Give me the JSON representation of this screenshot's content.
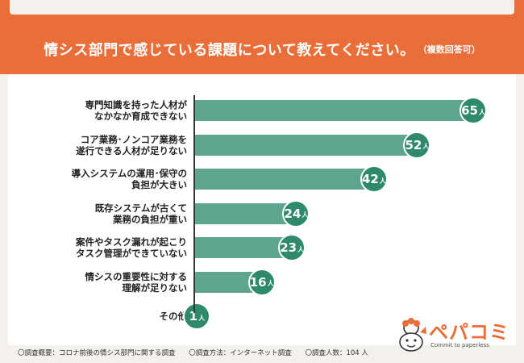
{
  "title": {
    "main": "情シス部門で感じている課題について教えてください。",
    "sub": "（複数回答可）"
  },
  "chart_data": {
    "type": "bar",
    "orientation": "horizontal",
    "unit": "人",
    "categories": [
      [
        "専門知識を持った人材が",
        "なかなか育成できない"
      ],
      [
        "コア業務･ノンコア業務を",
        "遂行できる人材が足りない"
      ],
      [
        "導入システムの運用･保守の",
        "負担が大きい"
      ],
      [
        "既存システムが古くて",
        "業務の負担が重い"
      ],
      [
        "案件やタスク漏れが起こり",
        "タスク管理ができていない"
      ],
      [
        "情シスの重要性に対する",
        "理解が足りない"
      ],
      [
        "その他"
      ]
    ],
    "values": [
      65,
      52,
      42,
      24,
      23,
      16,
      1
    ],
    "xlim": [
      0,
      70
    ]
  },
  "footer": {
    "overview": "〇調査概要：コロナ前後の情シス部門に関する調査",
    "method": "〇調査方法：インターネット調査",
    "count": "〇調査人数：104 人"
  },
  "logo": {
    "name": "ペパコミ",
    "tagline": "Commit to paperless"
  },
  "colors": {
    "accent": "#e96e3a",
    "bar": "#5fa58c",
    "badge": "#2f8a69",
    "background": "#f4f0ec"
  }
}
